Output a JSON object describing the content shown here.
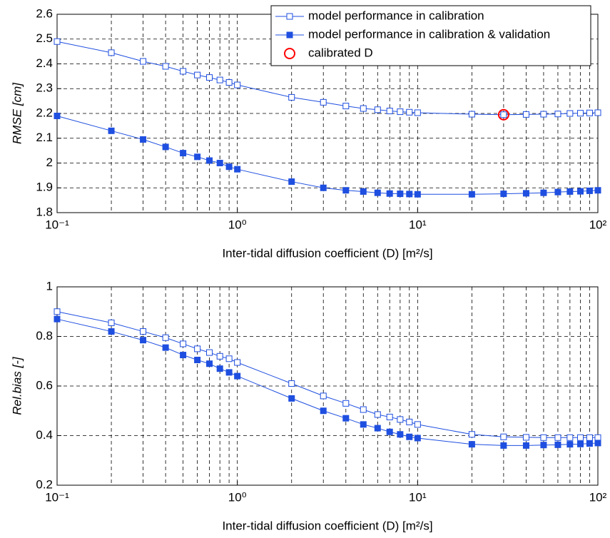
{
  "chart_data": [
    {
      "type": "line",
      "ylabel": "RMSE [cm]",
      "xlabel": "Inter-tidal diffusion coefficient (D) [m²/s]",
      "log_x": true,
      "grid": true,
      "legend": "upper right",
      "xlim": [
        0.1,
        100
      ],
      "xticks": [
        {
          "value": 0.1,
          "label": "10⁻¹"
        },
        {
          "value": 1,
          "label": "10⁰"
        },
        {
          "value": 10,
          "label": "10¹"
        },
        {
          "value": 100,
          "label": "10²"
        }
      ],
      "ylim": [
        1.8,
        2.6
      ],
      "yticks": [
        1.8,
        1.9,
        2,
        2.1,
        2.2,
        2.3,
        2.4,
        2.5,
        2.6
      ],
      "x": [
        0.1,
        0.2,
        0.3,
        0.4,
        0.5,
        0.6,
        0.7,
        0.8,
        0.9,
        1,
        2,
        3,
        4,
        5,
        6,
        7,
        8,
        9,
        10,
        20,
        30,
        40,
        50,
        60,
        70,
        80,
        90,
        100
      ],
      "series": [
        {
          "name": "model performance in calibration",
          "color": "#1f4fe0",
          "marker": "open-square",
          "values": [
            2.49,
            2.445,
            2.41,
            2.39,
            2.37,
            2.355,
            2.345,
            2.335,
            2.325,
            2.315,
            2.265,
            2.245,
            2.23,
            2.22,
            2.215,
            2.21,
            2.207,
            2.205,
            2.203,
            2.197,
            2.195,
            2.196,
            2.197,
            2.198,
            2.2,
            2.201,
            2.202,
            2.203
          ]
        },
        {
          "name": "model performance in calibration & validation",
          "color": "#1f4fe0",
          "marker": "filled-square",
          "values": [
            2.19,
            2.13,
            2.095,
            2.065,
            2.04,
            2.025,
            2.01,
            2.0,
            1.985,
            1.975,
            1.925,
            1.9,
            1.89,
            1.885,
            1.88,
            1.877,
            1.876,
            1.875,
            1.874,
            1.874,
            1.876,
            1.878,
            1.88,
            1.883,
            1.885,
            1.886,
            1.888,
            1.89
          ]
        }
      ],
      "highlight": {
        "name": "calibrated D",
        "x": 30,
        "y": 2.195,
        "color": "#ff0000"
      }
    },
    {
      "type": "line",
      "ylabel": "Rel.bias [-]",
      "xlabel": "Inter-tidal diffusion coefficient (D) [m²/s]",
      "log_x": true,
      "grid": true,
      "xlim": [
        0.1,
        100
      ],
      "xticks": [
        {
          "value": 0.1,
          "label": "10⁻¹"
        },
        {
          "value": 1,
          "label": "10⁰"
        },
        {
          "value": 10,
          "label": "10¹"
        },
        {
          "value": 100,
          "label": "10²"
        }
      ],
      "ylim": [
        0.2,
        1
      ],
      "yticks": [
        0.2,
        0.4,
        0.6,
        0.8,
        1
      ],
      "x": [
        0.1,
        0.2,
        0.3,
        0.4,
        0.5,
        0.6,
        0.7,
        0.8,
        0.9,
        1,
        2,
        3,
        4,
        5,
        6,
        7,
        8,
        9,
        10,
        20,
        30,
        40,
        50,
        60,
        70,
        80,
        90,
        100
      ],
      "series": [
        {
          "name": "model performance in calibration",
          "color": "#1f4fe0",
          "marker": "open-square",
          "values": [
            0.9,
            0.855,
            0.82,
            0.795,
            0.77,
            0.75,
            0.735,
            0.72,
            0.71,
            0.695,
            0.61,
            0.56,
            0.53,
            0.505,
            0.485,
            0.475,
            0.465,
            0.455,
            0.445,
            0.405,
            0.395,
            0.393,
            0.392,
            0.392,
            0.392,
            0.392,
            0.392,
            0.392
          ]
        },
        {
          "name": "model performance in calibration & validation",
          "color": "#1f4fe0",
          "marker": "filled-square",
          "values": [
            0.87,
            0.82,
            0.785,
            0.755,
            0.725,
            0.705,
            0.69,
            0.67,
            0.655,
            0.64,
            0.55,
            0.5,
            0.47,
            0.445,
            0.43,
            0.415,
            0.405,
            0.395,
            0.39,
            0.365,
            0.36,
            0.36,
            0.362,
            0.363,
            0.365,
            0.366,
            0.368,
            0.37
          ]
        }
      ]
    }
  ]
}
